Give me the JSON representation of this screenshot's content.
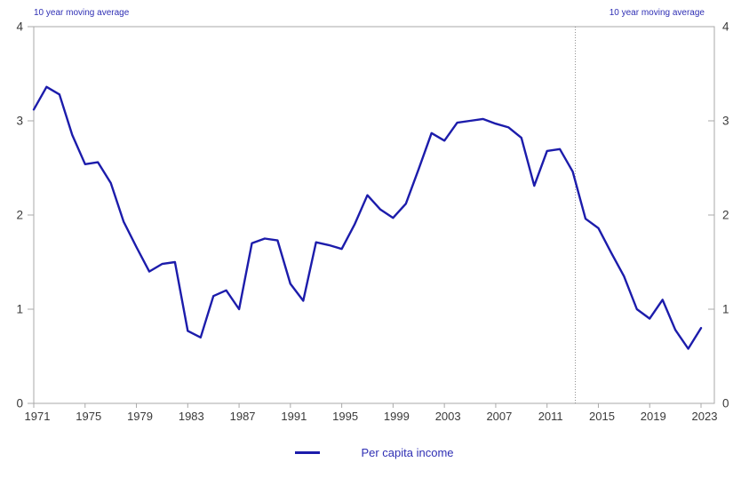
{
  "colors": {
    "line": "#1C1CAB",
    "annotation_text": "#2F2FB4",
    "axis": "#A9A9A9",
    "tick_text": "#3A3A3A",
    "vline": "#8C8C8C",
    "background": "#FFFFFF"
  },
  "annotations": {
    "top_left": "10 year moving average",
    "top_right": "10 year moving average"
  },
  "legend": {
    "label": "Per capita income"
  },
  "chart_data": {
    "type": "line",
    "title": "",
    "xlabel": "",
    "ylabel": "",
    "xlim": [
      1971,
      2023
    ],
    "ylim": [
      0,
      4
    ],
    "grid": false,
    "legend_position": "bottom-center",
    "vline_year": 2013,
    "vline_style": "dotted",
    "x_tick_labels": [
      "1971",
      "1975",
      "1979",
      "1983",
      "1987",
      "1991",
      "1995",
      "1999",
      "2003",
      "2007",
      "2011",
      "2015",
      "2019",
      "2023"
    ],
    "y_ticks": [
      0,
      1,
      2,
      3,
      4
    ],
    "x": [
      1971,
      1972,
      1973,
      1974,
      1975,
      1976,
      1977,
      1978,
      1979,
      1980,
      1981,
      1982,
      1983,
      1984,
      1985,
      1986,
      1987,
      1988,
      1989,
      1990,
      1991,
      1992,
      1993,
      1994,
      1995,
      1996,
      1997,
      1998,
      1999,
      2000,
      2001,
      2002,
      2003,
      2004,
      2005,
      2006,
      2007,
      2008,
      2009,
      2010,
      2011,
      2012,
      2013,
      2014,
      2015,
      2016,
      2017,
      2018,
      2019,
      2020,
      2021,
      2022,
      2023
    ],
    "series": [
      {
        "name": "Per capita income",
        "color": "#1C1CAB",
        "values": [
          3.12,
          3.36,
          3.28,
          2.85,
          2.54,
          2.56,
          2.34,
          1.93,
          1.66,
          1.4,
          1.48,
          1.5,
          0.77,
          0.7,
          1.14,
          1.2,
          1.0,
          1.7,
          1.75,
          1.73,
          1.27,
          1.09,
          1.71,
          1.68,
          1.64,
          1.9,
          2.21,
          2.06,
          1.97,
          2.12,
          2.49,
          2.87,
          2.79,
          2.98,
          3.0,
          3.02,
          2.97,
          2.93,
          2.82,
          2.31,
          2.68,
          2.7,
          2.46,
          1.96,
          1.86,
          1.6,
          1.35,
          1.0,
          0.9,
          1.1,
          0.78,
          0.58,
          0.8
        ]
      }
    ]
  }
}
